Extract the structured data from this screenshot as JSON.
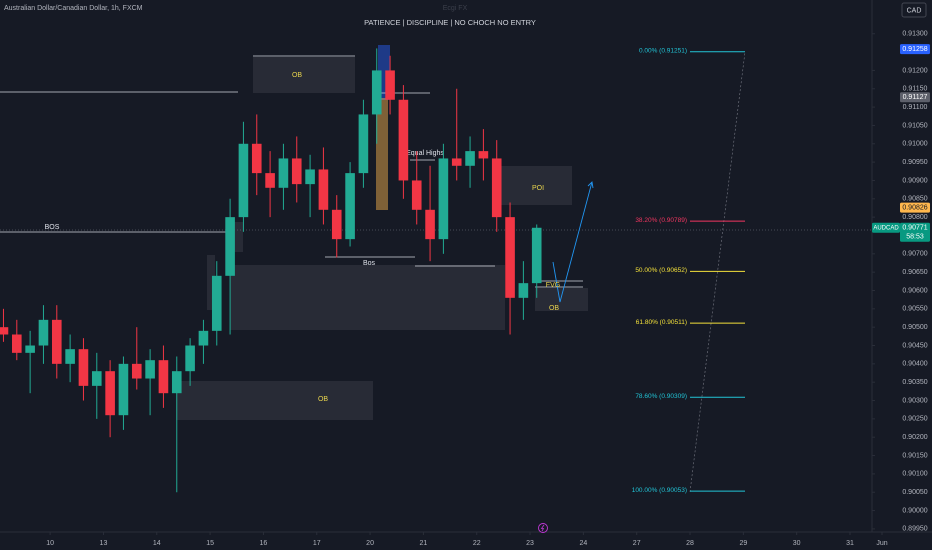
{
  "chart_data": {
    "type": "candlestick",
    "title": "Australian Dollar/Canadian Dollar, 1h, FXCM",
    "watermark": "Ecgi FX",
    "subtitle": "PATIENCE  |  DISCIPLINE  |  NO CHOCH NO ENTRY",
    "currency": "CAD",
    "up_color": "#22ab94",
    "down_color": "#f23645",
    "xlim": [
      -0.94,
      15.6
    ],
    "ylim": [
      0.89947,
      0.91392
    ],
    "xticks": [
      {
        "value": 0,
        "label": "10"
      },
      {
        "value": 1,
        "label": "13"
      },
      {
        "value": 2,
        "label": "14"
      },
      {
        "value": 3,
        "label": "15"
      },
      {
        "value": 4,
        "label": "16"
      },
      {
        "value": 5,
        "label": "17"
      },
      {
        "value": 6,
        "label": "20"
      },
      {
        "value": 7,
        "label": "21"
      },
      {
        "value": 8,
        "label": "22"
      },
      {
        "value": 9,
        "label": "23"
      },
      {
        "value": 10,
        "label": "24"
      },
      {
        "value": 11,
        "label": "27"
      },
      {
        "value": 12,
        "label": "28"
      },
      {
        "value": 13,
        "label": "29"
      },
      {
        "value": 14,
        "label": "30"
      },
      {
        "value": 15,
        "label": "31"
      },
      {
        "value": 15.6,
        "label": "Jun"
      }
    ],
    "yticks": [
      {
        "value": 0.913,
        "label": "0.91300"
      },
      {
        "value": 0.912,
        "label": "0.91200"
      },
      {
        "value": 0.9115,
        "label": "0.91150"
      },
      {
        "value": 0.911,
        "label": "0.91100"
      },
      {
        "value": 0.9105,
        "label": "0.91050"
      },
      {
        "value": 0.91,
        "label": "0.91000"
      },
      {
        "value": 0.9095,
        "label": "0.90950"
      },
      {
        "value": 0.909,
        "label": "0.90900"
      },
      {
        "value": 0.9085,
        "label": "0.90850"
      },
      {
        "value": 0.908,
        "label": "0.90800"
      },
      {
        "value": 0.907,
        "label": "0.90700"
      },
      {
        "value": 0.9065,
        "label": "0.90650"
      },
      {
        "value": 0.906,
        "label": "0.90600"
      },
      {
        "value": 0.9055,
        "label": "0.90550"
      },
      {
        "value": 0.905,
        "label": "0.90500"
      },
      {
        "value": 0.9045,
        "label": "0.90450"
      },
      {
        "value": 0.904,
        "label": "0.90400"
      },
      {
        "value": 0.9035,
        "label": "0.90350"
      },
      {
        "value": 0.903,
        "label": "0.90300"
      },
      {
        "value": 0.9025,
        "label": "0.90250"
      },
      {
        "value": 0.902,
        "label": "0.90200"
      },
      {
        "value": 0.9015,
        "label": "0.90150"
      },
      {
        "value": 0.901,
        "label": "0.90100"
      },
      {
        "value": 0.9005,
        "label": "0.90050"
      },
      {
        "value": 0.9,
        "label": "0.90000"
      },
      {
        "value": 0.8995,
        "label": "0.89950"
      }
    ],
    "candles": {
      "x": [
        -0.875,
        -0.625,
        -0.375,
        -0.125,
        0.125,
        0.375,
        0.625,
        0.875,
        1.125,
        1.375,
        1.625,
        1.875,
        2.125,
        2.375,
        2.625,
        2.875,
        3.125,
        3.375,
        3.625,
        3.875,
        4.125,
        4.375,
        4.625,
        4.875,
        5.125,
        5.375,
        5.625,
        5.875,
        6.125,
        6.375,
        6.625,
        6.875,
        7.125,
        7.375,
        7.625,
        7.875,
        8.125,
        8.375,
        8.625,
        8.875,
        9.125
      ],
      "open": [
        0.905,
        0.9048,
        0.9043,
        0.9045,
        0.9052,
        0.904,
        0.9044,
        0.9034,
        0.9038,
        0.9026,
        0.904,
        0.9036,
        0.9041,
        0.9032,
        0.9038,
        0.9045,
        0.9049,
        0.9064,
        0.908,
        0.91,
        0.9092,
        0.9088,
        0.9096,
        0.9089,
        0.9093,
        0.9082,
        0.9074,
        0.9092,
        0.9108,
        0.912,
        0.9112,
        0.909,
        0.9082,
        0.9074,
        0.9096,
        0.9094,
        0.9098,
        0.9096,
        0.908,
        0.9058,
        0.9062
      ],
      "high": [
        0.9055,
        0.9052,
        0.9049,
        0.9056,
        0.9056,
        0.9048,
        0.9047,
        0.9043,
        0.9041,
        0.9042,
        0.905,
        0.9044,
        0.9045,
        0.9042,
        0.9047,
        0.9052,
        0.9068,
        0.9085,
        0.9106,
        0.9108,
        0.9098,
        0.91,
        0.9102,
        0.9097,
        0.9099,
        0.9086,
        0.9095,
        0.9112,
        0.9126,
        0.9124,
        0.9116,
        0.9098,
        0.9094,
        0.91,
        0.9115,
        0.9102,
        0.9104,
        0.9101,
        0.9084,
        0.9068,
        0.9078
      ],
      "low": [
        0.9046,
        0.9041,
        0.9032,
        0.904,
        0.9036,
        0.9035,
        0.903,
        0.9025,
        0.902,
        0.9022,
        0.9033,
        0.9026,
        0.9028,
        0.9005,
        0.9034,
        0.904,
        0.9045,
        0.9048,
        0.9076,
        0.9086,
        0.908,
        0.9082,
        0.9084,
        0.908,
        0.9078,
        0.9069,
        0.9072,
        0.9088,
        0.91,
        0.9108,
        0.9085,
        0.9078,
        0.9068,
        0.907,
        0.909,
        0.9088,
        0.909,
        0.9076,
        0.9048,
        0.9052,
        0.9058
      ],
      "close": [
        0.9048,
        0.9043,
        0.9045,
        0.9052,
        0.904,
        0.9044,
        0.9034,
        0.9038,
        0.9026,
        0.904,
        0.9036,
        0.9041,
        0.9032,
        0.9038,
        0.9045,
        0.9049,
        0.9064,
        0.908,
        0.91,
        0.9092,
        0.9088,
        0.9096,
        0.9089,
        0.9093,
        0.9082,
        0.9074,
        0.9092,
        0.9108,
        0.912,
        0.9112,
        0.909,
        0.9082,
        0.9074,
        0.9096,
        0.9094,
        0.9098,
        0.9096,
        0.908,
        0.9058,
        0.9062,
        0.90771
      ]
    },
    "fib_levels": [
      {
        "label": "0.00% (0.91251)",
        "value": 0.91251,
        "color": "#22c4d6"
      },
      {
        "label": "38.20% (0.90789)",
        "value": 0.90789,
        "color": "#f23660"
      },
      {
        "label": "50.00% (0.90652)",
        "value": 0.90652,
        "color": "#f5e23b"
      },
      {
        "label": "61.80% (0.90511)",
        "value": 0.90511,
        "color": "#f5e23b"
      },
      {
        "label": "78.60% (0.90309)",
        "value": 0.90309,
        "color": "#22c4d6"
      },
      {
        "label": "100.00% (0.90053)",
        "value": 0.90053,
        "color": "#22c4d6"
      }
    ],
    "price_tags": [
      {
        "value": 0.91258,
        "color": "#2962ff"
      },
      {
        "value": 0.91127,
        "color": "#5d606b"
      },
      {
        "value": 0.90826,
        "color": "#ffb74d"
      }
    ],
    "last_price": {
      "symbol": "AUDCAD",
      "value": 0.90771,
      "countdown": "58:53",
      "color": "#089981"
    },
    "annotations": [
      "OB",
      "POI",
      "FVG",
      "OB",
      "OB",
      "BOS",
      "Bos",
      "Equal Highs"
    ]
  }
}
